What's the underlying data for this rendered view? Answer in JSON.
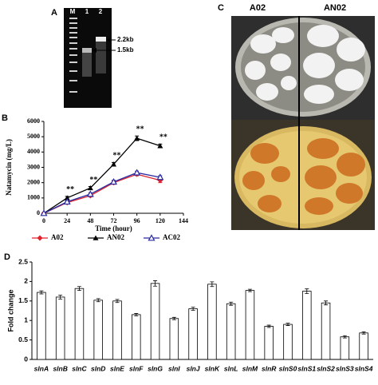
{
  "panels": {
    "a": {
      "label": "A",
      "lanes": [
        "M",
        "1",
        "2"
      ],
      "bands": [
        "2.2kb",
        "1.5kb"
      ]
    },
    "b": {
      "label": "B"
    },
    "c": {
      "label": "C",
      "strains": [
        "A02",
        "AN02"
      ]
    },
    "d": {
      "label": "D"
    }
  },
  "chart_data": [
    {
      "type": "line",
      "xlabel": "Time (hour)",
      "ylabel": "Natamycin (mg/L)",
      "x": [
        0,
        24,
        48,
        72,
        96,
        120
      ],
      "xlim": [
        0,
        144
      ],
      "xticks": [
        0,
        24,
        48,
        72,
        96,
        120,
        144
      ],
      "ylim": [
        0,
        6000
      ],
      "yticks": [
        0,
        1000,
        2000,
        3000,
        4000,
        5000,
        6000
      ],
      "series": [
        {
          "name": "A02",
          "color": "#e0202a",
          "marker": "diamond",
          "values": [
            0,
            700,
            1150,
            2000,
            2550,
            2150
          ],
          "errors": [
            0,
            80,
            80,
            100,
            100,
            150
          ]
        },
        {
          "name": "AN02",
          "color": "#000000",
          "marker": "triangle",
          "values": [
            0,
            1000,
            1650,
            3200,
            4900,
            4400
          ],
          "errors": [
            0,
            100,
            100,
            120,
            150,
            120
          ]
        },
        {
          "name": "AC02",
          "color": "#2a2aa0",
          "marker": "triangle-open",
          "values": [
            0,
            750,
            1250,
            2050,
            2650,
            2350
          ],
          "errors": [
            0,
            80,
            80,
            100,
            100,
            100
          ]
        }
      ],
      "annotations": [
        null,
        "**",
        "**",
        "**",
        "**",
        "**"
      ]
    },
    {
      "type": "bar",
      "ylabel": "Fold change",
      "categories": [
        "slnA",
        "slnB",
        "slnC",
        "slnD",
        "slnE",
        "slnF",
        "slnG",
        "slnI",
        "slnJ",
        "slnK",
        "slnL",
        "slnM",
        "slnR",
        "slnS0",
        "slnS1",
        "slnS2",
        "slnS3",
        "slnS4"
      ],
      "values": [
        1.72,
        1.6,
        1.82,
        1.52,
        1.5,
        1.15,
        1.95,
        1.05,
        1.3,
        1.93,
        1.43,
        1.77,
        0.85,
        0.9,
        1.75,
        1.45,
        0.58,
        0.68
      ],
      "errors": [
        0.04,
        0.05,
        0.05,
        0.04,
        0.04,
        0.03,
        0.07,
        0.03,
        0.04,
        0.06,
        0.04,
        0.03,
        0.03,
        0.03,
        0.06,
        0.05,
        0.03,
        0.03
      ],
      "color": "#ffffff",
      "ylim": [
        0,
        2.5
      ],
      "yticks": [
        0,
        0.5,
        1,
        1.5,
        2,
        2.5
      ]
    }
  ]
}
